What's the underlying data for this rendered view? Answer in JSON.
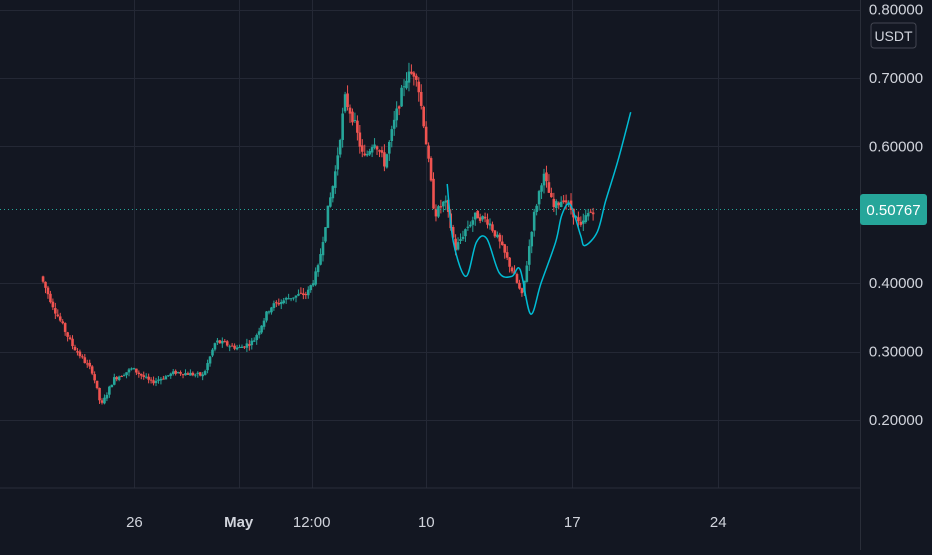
{
  "chart_data": {
    "type": "candlestick",
    "title": "",
    "currency_label": "USDT",
    "last_price_label": "0.50767",
    "last_price": 0.50767,
    "y_axis": {
      "range": [
        0.125,
        0.8
      ],
      "ticks": [
        {
          "value": 0.8,
          "label": "0.80000"
        },
        {
          "value": 0.7,
          "label": "0.70000"
        },
        {
          "value": 0.6,
          "label": "0.60000"
        },
        {
          "value": 0.4,
          "label": "0.40000"
        },
        {
          "value": 0.3,
          "label": "0.30000"
        },
        {
          "value": 0.2,
          "label": "0.20000"
        }
      ]
    },
    "x_axis": {
      "range": [
        "Apr 21",
        "May 28"
      ],
      "ticks": [
        {
          "x": 4.5,
          "label": "26"
        },
        {
          "x": 9.5,
          "label": "May",
          "bold": true
        },
        {
          "x": 13,
          "label": "12:00"
        },
        {
          "x": 18.5,
          "label": "10"
        },
        {
          "x": 25.5,
          "label": "17"
        },
        {
          "x": 32.5,
          "label": "24"
        }
      ]
    },
    "grid": true,
    "colors": {
      "up": "#26a69a",
      "down": "#ef5350",
      "drawing": "#00bcd4",
      "background": "#131722"
    },
    "price_keypoints": [
      [
        0.0,
        0.41
      ],
      [
        0.7,
        0.36
      ],
      [
        1.5,
        0.31
      ],
      [
        2.5,
        0.27
      ],
      [
        2.9,
        0.22
      ],
      [
        3.5,
        0.26
      ],
      [
        4.4,
        0.275
      ],
      [
        5.3,
        0.255
      ],
      [
        6.5,
        0.27
      ],
      [
        7.8,
        0.265
      ],
      [
        8.4,
        0.315
      ],
      [
        9.5,
        0.305
      ],
      [
        10.2,
        0.315
      ],
      [
        11.0,
        0.365
      ],
      [
        12.0,
        0.38
      ],
      [
        12.8,
        0.385
      ],
      [
        13.3,
        0.42
      ],
      [
        13.7,
        0.495
      ],
      [
        14.1,
        0.555
      ],
      [
        14.6,
        0.67
      ],
      [
        15.0,
        0.64
      ],
      [
        15.5,
        0.58
      ],
      [
        16.0,
        0.61
      ],
      [
        16.5,
        0.575
      ],
      [
        17.0,
        0.64
      ],
      [
        17.5,
        0.7
      ],
      [
        18.0,
        0.71
      ],
      [
        18.4,
        0.63
      ],
      [
        18.9,
        0.5
      ],
      [
        19.4,
        0.52
      ],
      [
        19.9,
        0.45
      ],
      [
        20.4,
        0.48
      ],
      [
        20.9,
        0.5
      ],
      [
        21.5,
        0.49
      ],
      [
        22.0,
        0.46
      ],
      [
        22.6,
        0.42
      ],
      [
        23.1,
        0.38
      ],
      [
        23.6,
        0.49
      ],
      [
        24.1,
        0.56
      ],
      [
        24.6,
        0.51
      ],
      [
        25.1,
        0.525
      ],
      [
        25.6,
        0.5
      ],
      [
        25.9,
        0.48
      ],
      [
        26.2,
        0.5
      ],
      [
        26.5,
        0.507
      ]
    ],
    "pattern_drawing_path": [
      [
        19.5,
        0.545
      ],
      [
        19.8,
        0.46
      ],
      [
        20.4,
        0.41
      ],
      [
        20.9,
        0.46
      ],
      [
        21.4,
        0.465
      ],
      [
        22.0,
        0.415
      ],
      [
        22.6,
        0.41
      ],
      [
        23.0,
        0.42
      ],
      [
        23.5,
        0.355
      ],
      [
        24.0,
        0.4
      ],
      [
        24.7,
        0.46
      ],
      [
        25.0,
        0.5
      ],
      [
        25.4,
        0.515
      ],
      [
        25.9,
        0.47
      ],
      [
        26.1,
        0.455
      ],
      [
        26.7,
        0.475
      ],
      [
        27.1,
        0.52
      ],
      [
        27.7,
        0.58
      ],
      [
        28.3,
        0.65
      ]
    ]
  }
}
